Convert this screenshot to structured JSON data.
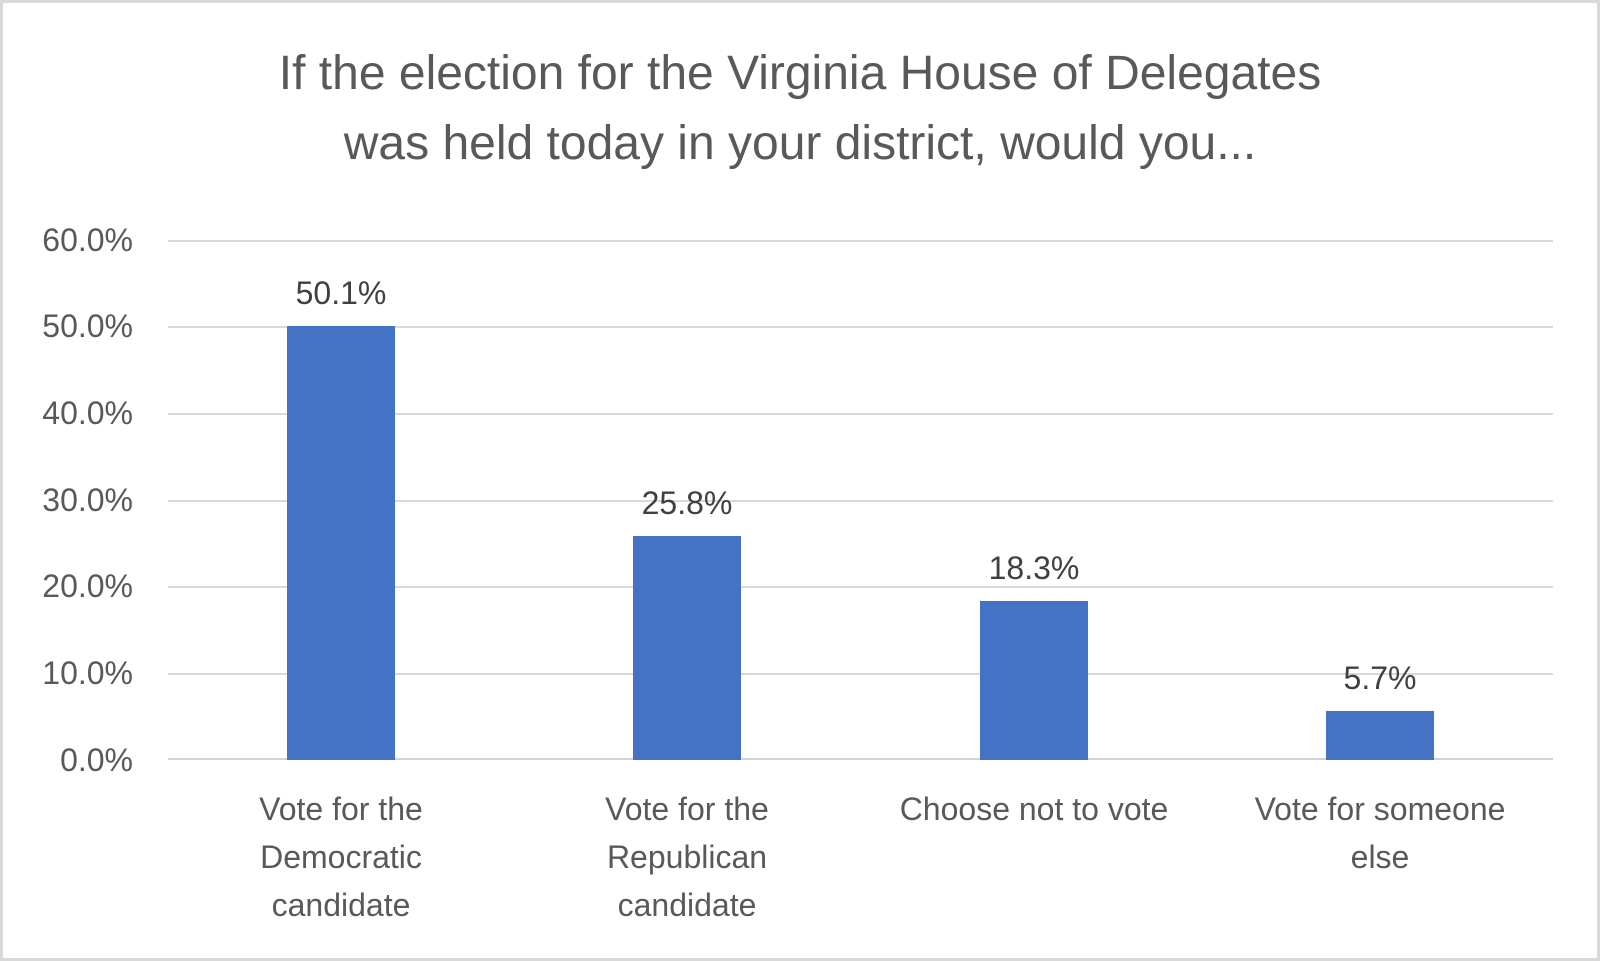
{
  "page": {
    "background_color": "#ffffff",
    "border_color": "#d9d9d9"
  },
  "chart_data": {
    "type": "bar",
    "title": "If the election for the Virginia House of Delegates\nwas held today in your district, would you...",
    "categories": [
      "Vote for the\nDemocratic\ncandidate",
      "Vote for the\nRepublican\ncandidate",
      "Choose not to vote",
      "Vote for someone\nelse"
    ],
    "values": [
      50.1,
      25.8,
      18.3,
      5.7
    ],
    "data_labels": [
      "50.1%",
      "25.8%",
      "18.3%",
      "5.7%"
    ],
    "y_ticks": [
      "60.0%",
      "50.0%",
      "40.0%",
      "30.0%",
      "20.0%",
      "10.0%",
      "0.0%"
    ],
    "ylim": [
      0,
      60
    ],
    "xlabel": "",
    "ylabel": "",
    "grid": true,
    "legend": "none",
    "bar_color": "#4472C4",
    "gridline_color": "#d9d9d9",
    "title_color": "#595959",
    "axis_text_color": "#595959",
    "data_label_color": "#404040"
  }
}
